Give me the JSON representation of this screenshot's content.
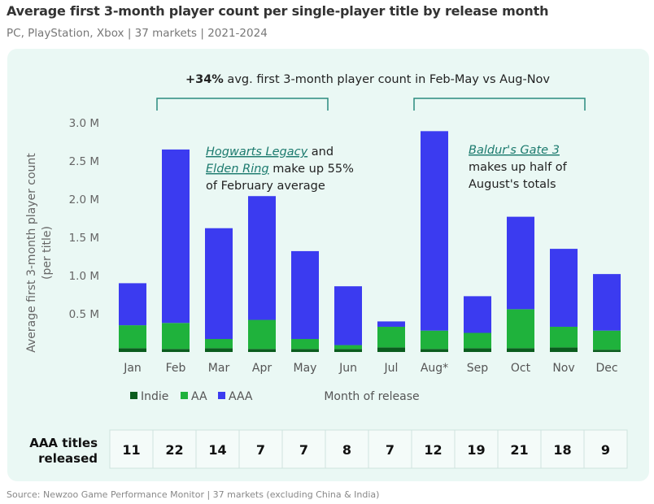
{
  "header": {
    "title": "Average first 3-month player count per single-player title by release month",
    "subtitle": "PC, PlayStation, Xbox | 37 markets | 2021-2024"
  },
  "source": "Source: Newzoo Game Performance Monitor | 37 markets (excluding China & India)",
  "colors": {
    "indie": "#0b5c1e",
    "aa": "#1fb23c",
    "aaa": "#3b3bf0",
    "bracket": "#2a8a7e",
    "panel": "#eaf8f4"
  },
  "annotations": {
    "bracket_bold": "+34%",
    "bracket_text": " avg. first 3-month player count in Feb-May vs Aug-Nov",
    "feb_link1": "Hogwarts Legacy",
    "feb_and": " and",
    "feb_link2": "Elden Ring",
    "feb_rest": " make up 55%",
    "feb_line3": "of February average",
    "aug_link": "Baldur's Gate 3",
    "aug_line2": "makes up half of",
    "aug_line3": "August's totals"
  },
  "chart_data": {
    "type": "bar",
    "stacked": true,
    "categories": [
      "Jan",
      "Feb",
      "Mar",
      "Apr",
      "May",
      "Jun",
      "Jul",
      "Aug*",
      "Sep",
      "Oct",
      "Nov",
      "Dec"
    ],
    "series": [
      {
        "name": "Indie",
        "values": [
          0.05,
          0.04,
          0.05,
          0.04,
          0.04,
          0.04,
          0.06,
          0.04,
          0.05,
          0.05,
          0.06,
          0.03
        ]
      },
      {
        "name": "AA",
        "values": [
          0.3,
          0.34,
          0.12,
          0.38,
          0.13,
          0.05,
          0.27,
          0.24,
          0.2,
          0.51,
          0.27,
          0.25
        ]
      },
      {
        "name": "AAA",
        "values": [
          0.55,
          2.27,
          1.45,
          1.62,
          1.15,
          0.77,
          0.07,
          2.61,
          0.48,
          1.21,
          1.02,
          0.74
        ]
      }
    ],
    "yticks": [
      "0.5 M",
      "1.0 M",
      "1.5 M",
      "2.0 M",
      "2.5 M",
      "3.0 M"
    ],
    "ylabel_line1": "Average first 3-month player count",
    "ylabel_line2": "(per title)",
    "xlabel": "Month of release",
    "ylim": [
      0,
      3.0
    ],
    "legend": [
      "Indie",
      "AA",
      "AAA"
    ],
    "legend_position": "bottom-left",
    "grid": false
  },
  "table": {
    "label_line1": "AAA titles",
    "label_line2": "released",
    "values": [
      "11",
      "22",
      "14",
      "7",
      "7",
      "8",
      "7",
      "12",
      "19",
      "21",
      "18",
      "9"
    ]
  }
}
